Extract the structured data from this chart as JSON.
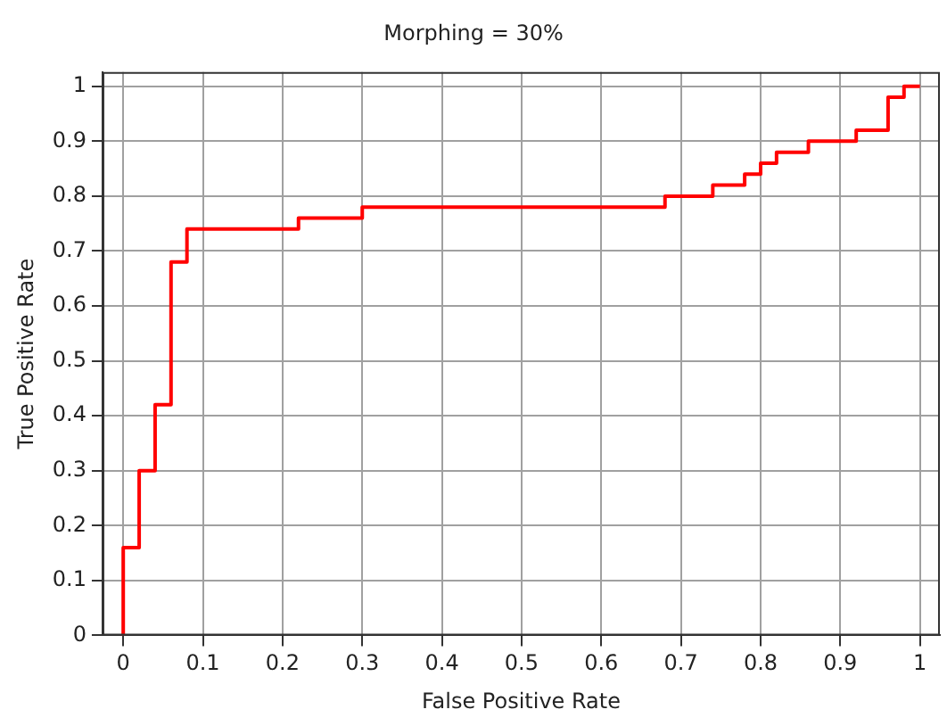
{
  "chart_data": {
    "type": "step",
    "title": "Morphing = 30%",
    "xlabel": "False Positive Rate",
    "ylabel": "True Positive Rate",
    "series": [
      {
        "color": "#ff0000",
        "x": [
          0,
          0,
          0.02,
          0.04,
          0.06,
          0.08,
          0.22,
          0.3,
          0.68,
          0.74,
          0.78,
          0.8,
          0.82,
          0.86,
          0.92,
          0.96,
          0.98,
          1
        ],
        "values": [
          0,
          0.16,
          0.3,
          0.42,
          0.68,
          0.74,
          0.76,
          0.78,
          0.8,
          0.82,
          0.84,
          0.86,
          0.88,
          0.9,
          0.92,
          0.98,
          1,
          1
        ]
      }
    ],
    "xlim": [
      -0.026,
      1.025
    ],
    "ylim": [
      0,
      1.026
    ],
    "xticks": [
      0,
      0.1,
      0.2,
      0.3,
      0.4,
      0.5,
      0.6,
      0.7,
      0.8,
      0.9,
      1
    ],
    "yticks": [
      0,
      0.1,
      0.2,
      0.3,
      0.4,
      0.5,
      0.6,
      0.7,
      0.8,
      0.9,
      1
    ],
    "grid": true,
    "legend": false,
    "marker": "none",
    "line_style": "solid"
  }
}
